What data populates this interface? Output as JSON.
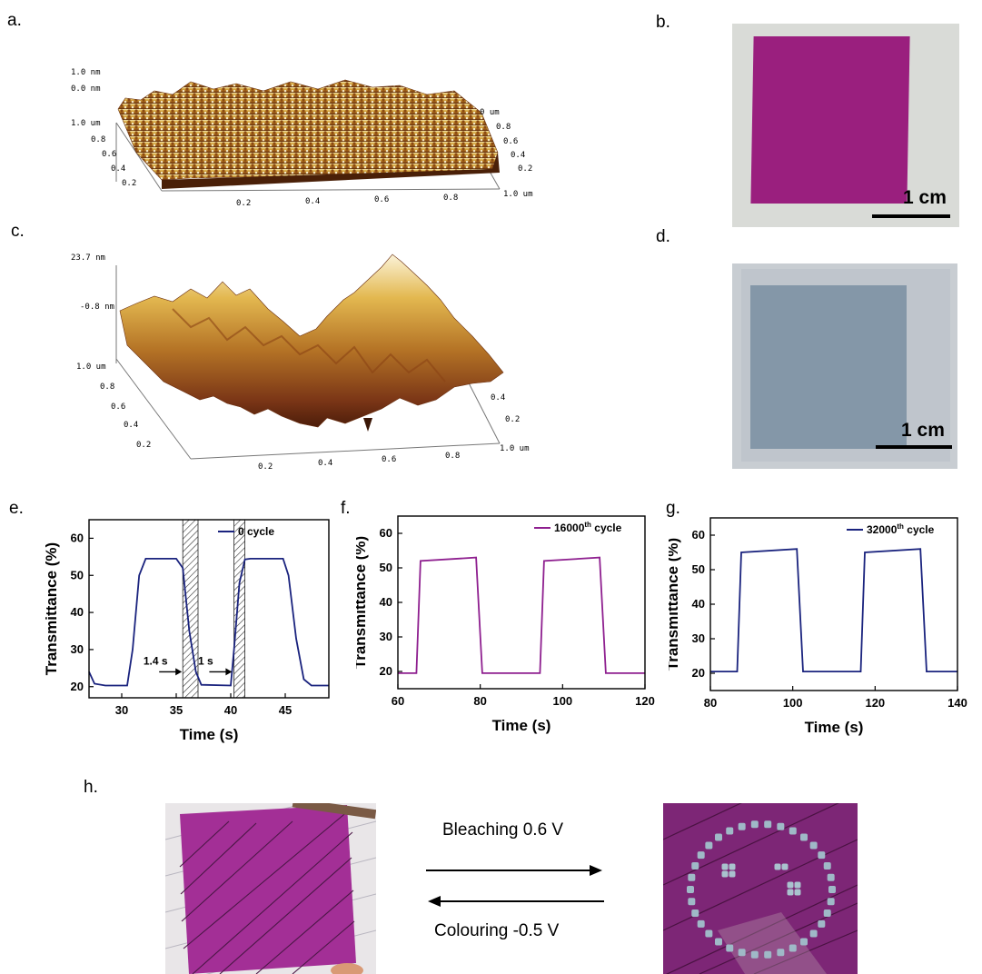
{
  "panels": {
    "a": "a.",
    "b": "b.",
    "c": "c.",
    "d": "d.",
    "e": "e.",
    "f": "f.",
    "g": "g.",
    "h": "h."
  },
  "afm_a": {
    "z_top": "1.0 nm",
    "z_bottom": "0.0 nm",
    "left_axis": [
      "1.0 um",
      "0.8",
      "0.6",
      "0.4",
      "0.2"
    ],
    "right_axis": [
      "0 um",
      "0.8",
      "0.6",
      "0.4",
      "0.2"
    ],
    "bottom_axis": [
      "0.2",
      "0.4",
      "0.6",
      "0.8",
      "1.0 um"
    ]
  },
  "afm_c": {
    "z_top": "23.7 nm",
    "z_bottom": "-0.8 nm",
    "left_axis": [
      "1.0 um",
      "0.8",
      "0.6",
      "0.4",
      "0.2"
    ],
    "right_axis": [
      "0.4",
      "0.2"
    ],
    "bottom_axis": [
      "0.2",
      "0.4",
      "0.6",
      "0.8",
      "1.0 um"
    ]
  },
  "photo_b": {
    "scale": "1 cm",
    "film_color": "#9a1f7e",
    "bg_color": "#d9dbd7"
  },
  "photo_d": {
    "scale": "1 cm",
    "film_color": "#8497a8",
    "bg_color": "#c8cdd2"
  },
  "arrows_h": {
    "top": "Bleaching 0.6 V",
    "bottom": "Colouring -0.5 V"
  },
  "chart_data": [
    {
      "type": "line",
      "panel": "e",
      "xlabel": "Time (s)",
      "ylabel": "Transmittance (%)",
      "xlim": [
        27,
        49
      ],
      "ylim": [
        17,
        65
      ],
      "xticks": [
        30,
        35,
        40,
        45
      ],
      "yticks": [
        20,
        30,
        40,
        50,
        60
      ],
      "legend": "0 cycle",
      "color": "#1a237e",
      "annotations": [
        {
          "text": "1.4 s",
          "x": 35.6,
          "y": 24
        },
        {
          "text": "1 s",
          "x": 40.2,
          "y": 24
        }
      ],
      "shaded_regions": [
        [
          35.6,
          37
        ],
        [
          40.3,
          41.3
        ]
      ],
      "x": [
        27,
        27.5,
        28.5,
        30.5,
        31.0,
        31.6,
        32.2,
        35,
        35.6,
        36.2,
        36.8,
        37.3,
        40,
        40.3,
        40.8,
        41.3,
        41.8,
        44.8,
        45.3,
        46.0,
        46.7,
        47.4,
        49
      ],
      "y": [
        24,
        20.8,
        20.3,
        20.3,
        30,
        50,
        54.5,
        54.5,
        52,
        35,
        24,
        20.5,
        20.3,
        30,
        48,
        54.3,
        54.5,
        54.5,
        50,
        33,
        22,
        20.3,
        20.3
      ]
    },
    {
      "type": "line",
      "panel": "f",
      "xlabel": "Time (s)",
      "ylabel": "Transmittance (%)",
      "xlim": [
        60,
        120
      ],
      "ylim": [
        15,
        65
      ],
      "xticks": [
        60,
        80,
        100,
        120
      ],
      "yticks": [
        20,
        30,
        40,
        50,
        60
      ],
      "legend": "16000th cycle",
      "color": "#8e1f8f",
      "x": [
        60,
        64.5,
        65.5,
        79.0,
        80.5,
        94.5,
        95.5,
        109.0,
        110.5,
        120
      ],
      "y": [
        19.5,
        19.5,
        52,
        53,
        19.5,
        19.5,
        52,
        53,
        19.5,
        19.5
      ]
    },
    {
      "type": "line",
      "panel": "g",
      "xlabel": "Time (s)",
      "ylabel": "Transmittance (%)",
      "xlim": [
        80,
        140
      ],
      "ylim": [
        15,
        65
      ],
      "xticks": [
        80,
        100,
        120,
        140
      ],
      "yticks": [
        20,
        30,
        40,
        50,
        60
      ],
      "legend": "32000th cycle",
      "color": "#1a237e",
      "x": [
        80,
        86.5,
        87.5,
        101.0,
        102.5,
        116.5,
        117.5,
        131.0,
        132.5,
        140
      ],
      "y": [
        20.5,
        20.5,
        55,
        56,
        20.5,
        20.5,
        55,
        56,
        20.5,
        20.5
      ]
    }
  ]
}
